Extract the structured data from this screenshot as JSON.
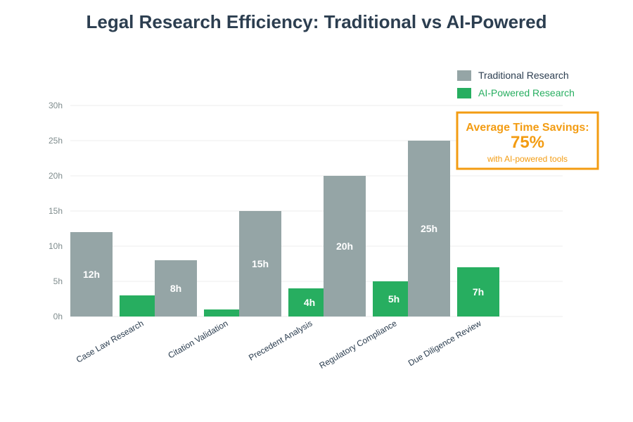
{
  "chart_data": {
    "type": "bar",
    "title": "Legal Research Efficiency: Traditional vs AI-Powered",
    "xlabel": "",
    "ylabel": "",
    "ylim": [
      0,
      30
    ],
    "yticks": [
      0,
      5,
      10,
      15,
      20,
      25,
      30
    ],
    "ytick_suffix": "h",
    "grid": true,
    "categories": [
      "Case Law Research",
      "Citation Validation",
      "Precedent Analysis",
      "Regulatory Compliance",
      "Due Diligence Review"
    ],
    "series": [
      {
        "name": "Traditional Research",
        "color": "#95a5a6",
        "values": [
          12,
          8,
          15,
          20,
          25
        ],
        "labels": [
          "12h",
          "8h",
          "15h",
          "20h",
          "25h"
        ]
      },
      {
        "name": "AI-Powered Research",
        "color": "#27ae60",
        "values": [
          3,
          1,
          4,
          5,
          7
        ],
        "labels": [
          "",
          "",
          "4h",
          "5h",
          "7h"
        ]
      }
    ],
    "legend": {
      "placement": "top-right",
      "items": [
        {
          "label": "Traditional Research",
          "color": "#95a5a6",
          "text_color": "#2c3e50"
        },
        {
          "label": "AI-Powered Research",
          "color": "#27ae60",
          "text_color": "#27ae60"
        }
      ]
    },
    "annotation": {
      "title": "Average Time Savings:",
      "value": "75%",
      "subtitle": "with AI-powered tools",
      "color": "#f39c12"
    }
  }
}
